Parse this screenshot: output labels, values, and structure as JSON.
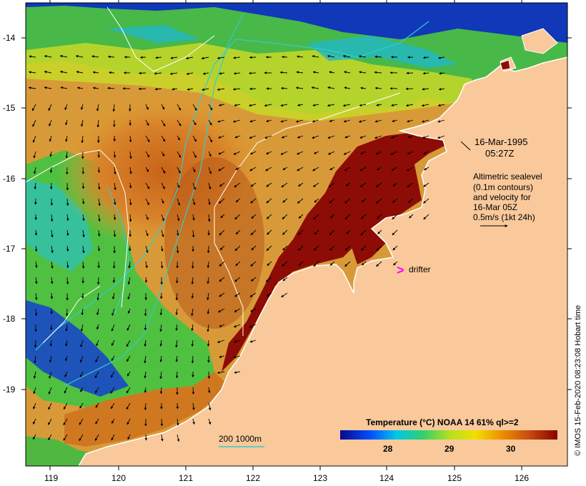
{
  "map": {
    "date_line": "16-Mar-1995",
    "time_line": "05:27Z",
    "legend_lines": [
      "Altimetric sealevel",
      "(0.1m contours)",
      "and velocity for",
      "16-Mar 05Z",
      "0.5m/s (1kt 24h)"
    ],
    "drifter_symbol": ">",
    "drifter_label": "drifter",
    "bathy_label": "200  1000m",
    "credit": "© IMOS 15-Feb-2020 08:23:08 Hobart time",
    "lat_ticks": [
      "-14",
      "-15",
      "-16",
      "-17",
      "-18",
      "-19"
    ],
    "lon_ticks": [
      "119",
      "120",
      "121",
      "122",
      "123",
      "124",
      "125",
      "126"
    ],
    "colorbar": {
      "title": "Temperature (°C) NOAA 14 61% ql>=2",
      "ticks": [
        "28",
        "29",
        "30"
      ]
    },
    "colors": {
      "land": "#f9c99b",
      "coast": "#ffffff",
      "drifter": "#ff00ff",
      "contour": "#ffffff",
      "bathy_line": "#33cccc"
    }
  }
}
